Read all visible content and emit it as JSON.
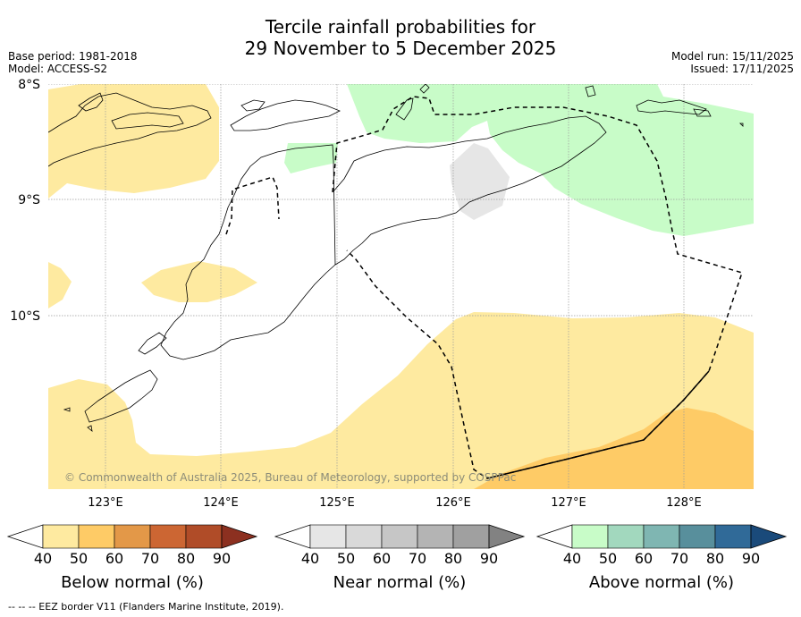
{
  "title": {
    "line1": "Tercile rainfall probabilities for",
    "line2": "29 November to 5 December 2025"
  },
  "meta": {
    "base_period": "Base period: 1981-2018",
    "model": "Model: ACCESS-S2",
    "model_run": "Model run: 15/11/2025",
    "issued": "Issued: 17/11/2025"
  },
  "map": {
    "lat_labels": [
      "8°S",
      "9°S",
      "10°S"
    ],
    "lon_labels": [
      "123°E",
      "124°E",
      "125°E",
      "126°E",
      "127°E",
      "128°E"
    ],
    "copyright": "© Commonwealth of Australia 2025, Bureau of Meteorology, supported by COSPPac"
  },
  "colorbars": [
    {
      "label": "Below normal (%)",
      "ticks": [
        "40",
        "50",
        "60",
        "70",
        "80",
        "90"
      ],
      "colors": [
        "#ffffff",
        "#feeaa0",
        "#fecb66",
        "#e39848",
        "#cc6633",
        "#b04c28",
        "#8c3020"
      ]
    },
    {
      "label": "Near normal (%)",
      "ticks": [
        "40",
        "50",
        "60",
        "70",
        "80",
        "90"
      ],
      "colors": [
        "#ffffff",
        "#e6e6e6",
        "#d9d9d9",
        "#c6c6c6",
        "#b4b4b4",
        "#a0a0a0",
        "#828282"
      ]
    },
    {
      "label": "Above normal (%)",
      "ticks": [
        "40",
        "50",
        "60",
        "70",
        "80",
        "90"
      ],
      "colors": [
        "#ffffff",
        "#c8fcc8",
        "#a2d8be",
        "#7fb6b2",
        "#588f9c",
        "#306a98",
        "#1a4a7a"
      ]
    }
  ],
  "footer": "--  --  -- EEZ border V11 (Flanders Marine Institute, 2019)."
}
